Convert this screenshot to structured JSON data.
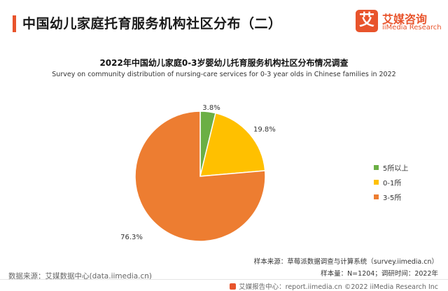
{
  "header": {
    "title": "中国幼儿家庭托育服务机构社区分布（二）",
    "accent_color": "#E8542C"
  },
  "logo": {
    "mark": "艾",
    "name_cn": "艾媒咨询",
    "name_en": "iiMedia Research",
    "color": "#E8542C"
  },
  "chart_data": {
    "type": "pie",
    "title": "2022年中国幼儿家庭0-3岁婴幼儿托育服务机构社区分布情况调查",
    "subtitle": "Survey on community distribution of nursing-care services for 0-3 year olds in Chinese families in 2022",
    "slices": [
      {
        "label": "5所以上",
        "value": 3.8,
        "display": "3.8%",
        "color": "#6BAF45"
      },
      {
        "label": "0-1所",
        "value": 19.8,
        "display": "19.8%",
        "color": "#FFC000"
      },
      {
        "label": "3-5所",
        "value": 76.3,
        "display": "76.3%",
        "color": "#ED7D31"
      }
    ],
    "start_angle_deg": 0,
    "direction": "clockwise",
    "legend_position": "right"
  },
  "sources": {
    "sample_source": "样本来源：草莓派数据调查与计算系统（survey.iimedia.cn）",
    "sample_info": "样本量：N=1204；调研时间：2022年",
    "data_source": "数据来源：艾媒数据中心(data.iimedia.cn)"
  },
  "footer": {
    "text": "艾媒报告中心：report.iimedia.cn  ©2022  iiMedia Research  Inc"
  }
}
